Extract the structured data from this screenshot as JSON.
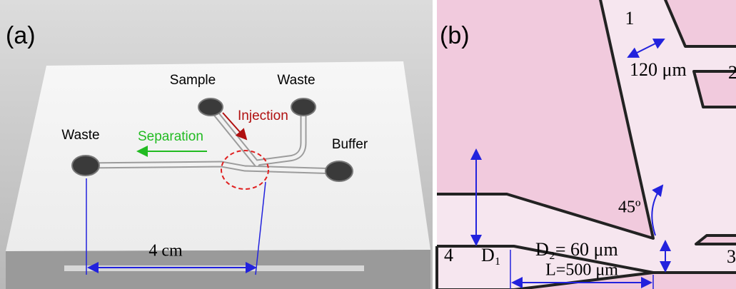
{
  "panel_a": {
    "label": "(a)",
    "ports": {
      "sample": "Sample",
      "waste_top": "Waste",
      "waste_left": "Waste",
      "buffer": "Buffer"
    },
    "injection": "Injection",
    "separation": "Separation",
    "length": "4 cm"
  },
  "panel_b": {
    "label": "(b)",
    "channel_1": "1",
    "width_1": "120 μm",
    "channel_2": "2",
    "angle": "45º",
    "channel_4": "4",
    "d1": "D₁",
    "d2": "D₂= 60 μm",
    "channel_3": "3",
    "taper_length": "L=500 μm"
  }
}
